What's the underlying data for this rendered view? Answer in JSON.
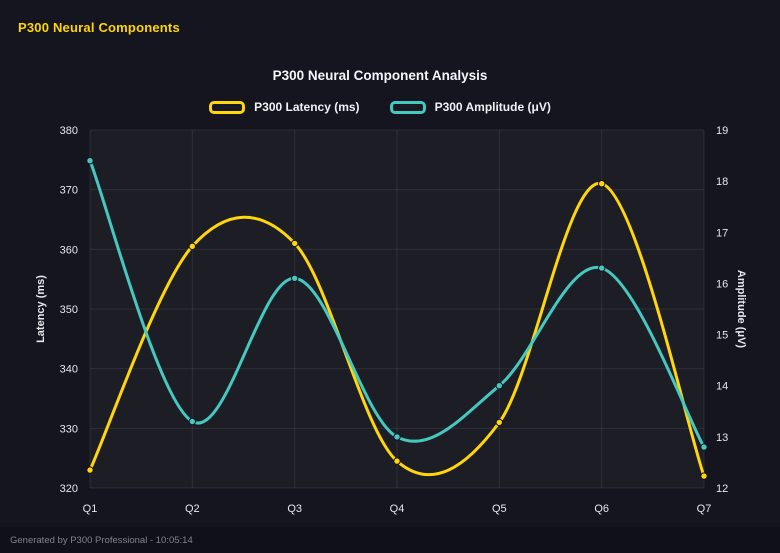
{
  "header": {
    "title": "P300 Neural Components"
  },
  "footer": {
    "text": "Generated by P300 Professional - 10:05:14"
  },
  "chart_data": {
    "type": "line",
    "title": "P300 Neural Component Analysis",
    "categories": [
      "Q1",
      "Q2",
      "Q3",
      "Q4",
      "Q5",
      "Q6",
      "Q7"
    ],
    "series": [
      {
        "name": "P300 Latency (ms)",
        "axis": "left",
        "color": "#ffd60a",
        "values": [
          323,
          360.5,
          361,
          324.5,
          331,
          371,
          322
        ]
      },
      {
        "name": "P300 Amplitude (μV)",
        "axis": "right",
        "color": "#45c8c0",
        "values": [
          18.4,
          13.3,
          16.1,
          13.0,
          14.0,
          16.3,
          12.8
        ]
      }
    ],
    "left_axis": {
      "label": "Latency (ms)",
      "min": 320,
      "max": 380,
      "ticks": [
        320,
        330,
        340,
        350,
        360,
        370,
        380
      ]
    },
    "right_axis": {
      "label": "Amplitude (μV)",
      "min": 12,
      "max": 19,
      "ticks": [
        12,
        13,
        14,
        15,
        16,
        17,
        18,
        19
      ]
    },
    "grid": true,
    "legend_position": "top",
    "curve": "smooth"
  },
  "colors": {
    "background": "#15151f",
    "plot_background": "rgba(255,255,255,0.035)",
    "gridline": "rgba(255,255,255,0.08)",
    "tick_text": "#e6e6ec",
    "title_text": "#f5f5fa",
    "accent_yellow": "#ffd60a",
    "accent_teal": "#45c8c0"
  }
}
